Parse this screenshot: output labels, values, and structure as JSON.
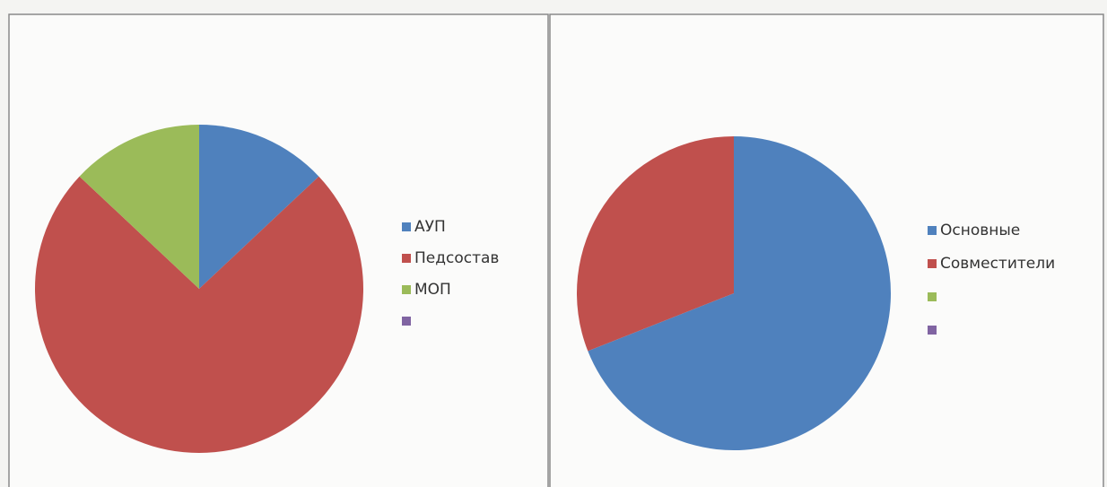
{
  "chart_data": [
    {
      "type": "pie",
      "categories": [
        "АУП",
        "Педсостав",
        "МОП",
        null
      ],
      "values": [
        13,
        74,
        13,
        0
      ],
      "colors": [
        "#4f81bd",
        "#c0504d",
        "#9bbb59",
        "#8064a2"
      ]
    },
    {
      "type": "pie",
      "categories": [
        "Основные",
        "Совместители",
        null,
        null
      ],
      "values": [
        69,
        31,
        0,
        0
      ],
      "colors": [
        "#4f81bd",
        "#c0504d",
        "#9bbb59",
        "#8064a2"
      ]
    }
  ]
}
